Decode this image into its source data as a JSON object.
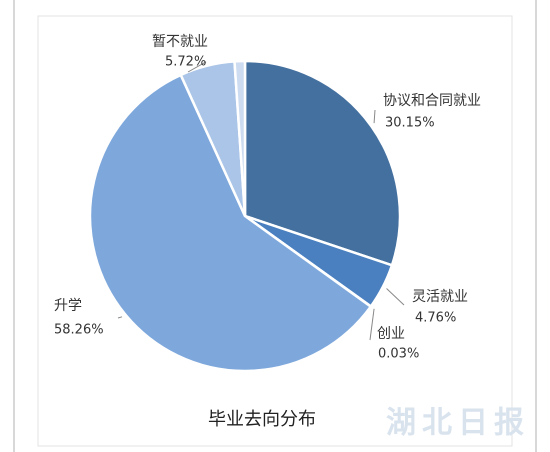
{
  "chart_data": {
    "type": "pie",
    "title": "毕业去向分布",
    "categories": [
      "协议和合同就业",
      "灵活就业",
      "创业",
      "升学",
      "暂不就业",
      null
    ],
    "values": [
      30.15,
      4.76,
      0.03,
      58.26,
      5.72,
      1.08
    ],
    "value_labels": [
      "30.15%",
      "4.76%",
      "0.03%",
      "58.26%",
      "5.72%",
      null
    ],
    "colors": [
      "#44709f",
      "#4a80c0",
      "#4a80c0",
      "#7ea8dc",
      "#aac5e7",
      "#cddcf0"
    ],
    "watermark": "湖北日报"
  }
}
